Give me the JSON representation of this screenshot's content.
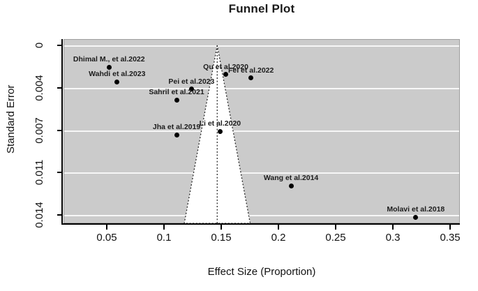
{
  "title": "Funnel Plot",
  "colors": {
    "plot_bg": "#cbcbcb",
    "gridline": "#f7f7f7",
    "funnel_fill": "#ffffff",
    "funnel_border": "#2b2b2b",
    "point": "#000000",
    "axis": "#000000"
  },
  "chart_data": {
    "type": "scatter",
    "title": "Funnel Plot",
    "xlabel": "Effect Size (Proportion)",
    "ylabel": "Standard Error",
    "grid": true,
    "xlim": [
      0.0122,
      0.3585
    ],
    "ylim": [
      -0.00052,
      0.01469
    ],
    "x_ticks": [
      0.05,
      0.1,
      0.15,
      0.2,
      0.25,
      0.3,
      0.35
    ],
    "x_tick_labels": [
      "0.05",
      "0.1",
      "0.15",
      "0.2",
      "0.25",
      "0.3",
      "0.35"
    ],
    "y_ticks": [
      0,
      0.0035,
      0.007,
      0.0105,
      0.014
    ],
    "y_tick_labels": [
      "0",
      "0.004",
      "0.007",
      "0.011",
      "0.014"
    ],
    "funnel": {
      "center": 0.1465,
      "z": 1.96
    },
    "points": [
      {
        "label": "Dhimal M., et al.2022",
        "x": 0.052,
        "se": 0.0018
      },
      {
        "label": "Wahdi et al.2023",
        "x": 0.059,
        "se": 0.003
      },
      {
        "label": "Pei et al.2023",
        "x": 0.124,
        "se": 0.0036
      },
      {
        "label": "Sahril et al.2021",
        "x": 0.111,
        "se": 0.0045
      },
      {
        "label": "Qu et al.2020",
        "x": 0.154,
        "se": 0.0024
      },
      {
        "label": "Fei et al.2022",
        "x": 0.176,
        "se": 0.0027
      },
      {
        "label": "Jha et al.2019",
        "x": 0.111,
        "se": 0.0074
      },
      {
        "label": "Li et al.2020",
        "x": 0.149,
        "se": 0.0071
      },
      {
        "label": "Wang et al.2014",
        "x": 0.211,
        "se": 0.0116
      },
      {
        "label": "Molavi et al.2018",
        "x": 0.32,
        "se": 0.0142
      }
    ]
  }
}
